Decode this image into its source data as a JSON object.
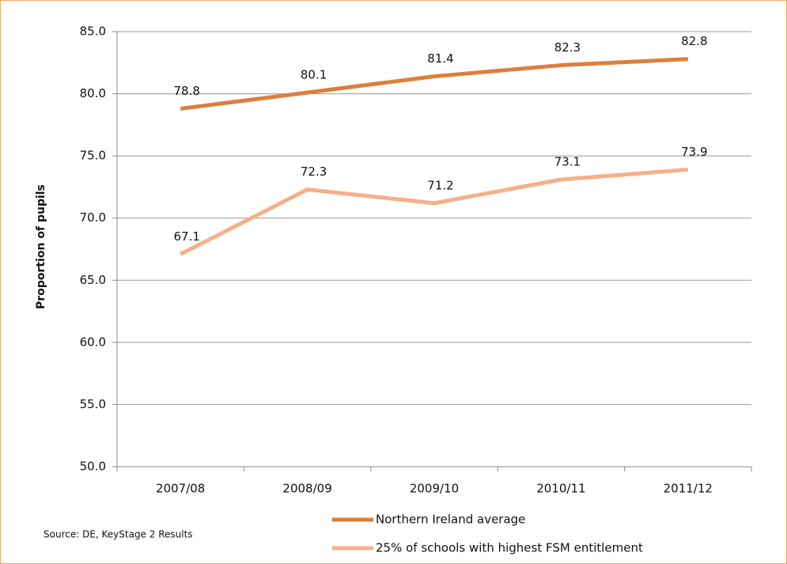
{
  "chart_data": {
    "type": "line",
    "y_label": "Proportion of pupils",
    "source": "Source: DE, KeyStage 2 Results",
    "categories": [
      "2007/08",
      "2008/09",
      "2009/10",
      "2010/11",
      "2011/12"
    ],
    "series": [
      {
        "name": "Northern Ireland average",
        "color": "#dc7f3c",
        "values": [
          78.8,
          80.1,
          81.4,
          82.3,
          82.8
        ]
      },
      {
        "name": "25% of schools with highest FSM entitlement",
        "color": "#f5b08a",
        "values": [
          67.1,
          72.3,
          71.2,
          73.1,
          73.9
        ]
      }
    ],
    "ylim": [
      50,
      85
    ],
    "yticks": [
      {
        "value": 50,
        "label": "50.0"
      },
      {
        "value": 55,
        "label": "55.0"
      },
      {
        "value": 60,
        "label": "60.0"
      },
      {
        "value": 65,
        "label": "65.0"
      },
      {
        "value": 70,
        "label": "70.0"
      },
      {
        "value": 75,
        "label": "75.0"
      },
      {
        "value": 80,
        "label": "80.0"
      },
      {
        "value": 85,
        "label": "85.0"
      }
    ],
    "grid": true,
    "legend": "bottom"
  }
}
